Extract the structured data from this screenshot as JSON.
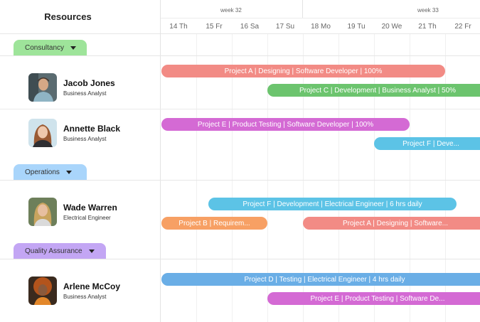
{
  "header": {
    "title": "Resources"
  },
  "weeks": [
    {
      "label": "week 32"
    },
    {
      "label": "week 33"
    }
  ],
  "days": [
    "14 Th",
    "15 Fr",
    "16 Sa",
    "17 Su",
    "18 Mo",
    "19 Tu",
    "20 We",
    "21 Th",
    "22 Fr"
  ],
  "colors": {
    "red": "#f28b85",
    "green": "#6cc46e",
    "magenta": "#d46ad4",
    "sky": "#5cc3e6",
    "orange": "#f7a064",
    "blue": "#6aaee6",
    "consultancy_pill": "#9ee49a",
    "operations_pill": "#a9d5fb",
    "quality_pill": "#c3a6f4"
  },
  "groups": [
    {
      "label": "Consultancy"
    },
    {
      "label": "Operations"
    },
    {
      "label": "Quality Assurance"
    }
  ],
  "people": [
    {
      "name": "Jacob Jones",
      "role": "Business Analyst"
    },
    {
      "name": "Annette Black",
      "role": "Business Analyst"
    },
    {
      "name": "Wade Warren",
      "role": "Electrical Engineer"
    },
    {
      "name": "Arlene McCoy",
      "role": "Business Analyst"
    }
  ],
  "bars": [
    {
      "text": "Project A | Designing | Software Developer | 100%"
    },
    {
      "text": "Project C | Development | Business Analyst | 50%"
    },
    {
      "text": "Project E | Product Testing | Software Developer | 100%"
    },
    {
      "text": "Project F | Deve..."
    },
    {
      "text": "Project F | Development | Electrical Engineer | 6 hrs daily"
    },
    {
      "text": "Project B | Requirem..."
    },
    {
      "text": "Project A | Designing | Software..."
    },
    {
      "text": "Project D | Testing | Electrical Engineer | 4 hrs daily"
    },
    {
      "text": "Project E | Product Testing | Software De..."
    }
  ]
}
